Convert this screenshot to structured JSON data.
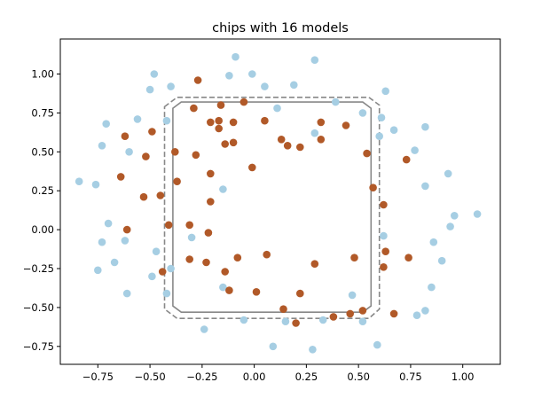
{
  "chart_data": {
    "type": "scatter",
    "title": "chips with 16 models",
    "xlabel": "",
    "ylabel": "",
    "xlim": [
      -0.93,
      1.18
    ],
    "ylim": [
      -0.865,
      1.225
    ],
    "xticks": [
      -0.75,
      -0.5,
      -0.25,
      0.0,
      0.25,
      0.5,
      0.75,
      1.0
    ],
    "xtick_labels": [
      "−0.75",
      "−0.50",
      "−0.25",
      "0.00",
      "0.25",
      "0.50",
      "0.75",
      "1.00"
    ],
    "yticks": [
      -0.75,
      -0.5,
      -0.25,
      0.0,
      0.25,
      0.5,
      0.75,
      1.0
    ],
    "ytick_labels": [
      "−0.75",
      "−0.50",
      "−0.25",
      "0.00",
      "0.25",
      "0.50",
      "0.75",
      "1.00"
    ],
    "grid": false,
    "legend": "none",
    "colors": {
      "class_0": "#a6cee3",
      "class_1": "#b15928",
      "boundary_solid": "#888888",
      "boundary_dashed": "#888888"
    },
    "series": [
      {
        "color_key": "class_0",
        "points": [
          [
            -0.84,
            0.31
          ],
          [
            -0.76,
            0.29
          ],
          [
            -0.73,
            0.54
          ],
          [
            -0.71,
            0.68
          ],
          [
            -0.7,
            0.04
          ],
          [
            -0.73,
            -0.08
          ],
          [
            -0.75,
            -0.26
          ],
          [
            -0.67,
            -0.21
          ],
          [
            -0.62,
            -0.07
          ],
          [
            -0.61,
            -0.41
          ],
          [
            -0.56,
            0.71
          ],
          [
            -0.6,
            0.5
          ],
          [
            -0.5,
            0.9
          ],
          [
            -0.48,
            1.0
          ],
          [
            -0.47,
            -0.14
          ],
          [
            -0.49,
            -0.3
          ],
          [
            -0.42,
            0.7
          ],
          [
            -0.4,
            0.92
          ],
          [
            -0.4,
            -0.25
          ],
          [
            -0.42,
            -0.41
          ],
          [
            -0.3,
            -0.05
          ],
          [
            -0.24,
            -0.64
          ],
          [
            -0.15,
            0.26
          ],
          [
            -0.15,
            -0.37
          ],
          [
            -0.12,
            0.99
          ],
          [
            -0.09,
            1.11
          ],
          [
            -0.05,
            -0.58
          ],
          [
            -0.01,
            1.0
          ],
          [
            0.05,
            0.92
          ],
          [
            0.09,
            -0.75
          ],
          [
            0.11,
            0.78
          ],
          [
            0.15,
            -0.59
          ],
          [
            0.19,
            0.93
          ],
          [
            0.29,
            1.09
          ],
          [
            0.29,
            0.62
          ],
          [
            0.28,
            -0.77
          ],
          [
            0.33,
            -0.58
          ],
          [
            0.39,
            0.82
          ],
          [
            0.52,
            0.75
          ],
          [
            0.47,
            -0.42
          ],
          [
            0.52,
            -0.59
          ],
          [
            0.61,
            0.72
          ],
          [
            0.6,
            0.6
          ],
          [
            0.63,
            0.89
          ],
          [
            0.67,
            0.64
          ],
          [
            0.59,
            -0.74
          ],
          [
            0.62,
            -0.04
          ],
          [
            0.77,
            0.51
          ],
          [
            0.82,
            0.66
          ],
          [
            0.82,
            0.28
          ],
          [
            0.78,
            -0.55
          ],
          [
            0.82,
            -0.52
          ],
          [
            0.85,
            -0.37
          ],
          [
            0.86,
            -0.08
          ],
          [
            0.9,
            -0.2
          ],
          [
            0.93,
            0.36
          ],
          [
            0.94,
            0.02
          ],
          [
            0.96,
            0.09
          ],
          [
            1.07,
            0.1
          ]
        ]
      },
      {
        "color_key": "class_1",
        "points": [
          [
            -0.64,
            0.34
          ],
          [
            -0.62,
            0.6
          ],
          [
            -0.61,
            0.0
          ],
          [
            -0.53,
            0.21
          ],
          [
            -0.52,
            0.47
          ],
          [
            -0.49,
            0.63
          ],
          [
            -0.45,
            0.22
          ],
          [
            -0.44,
            -0.27
          ],
          [
            -0.41,
            0.03
          ],
          [
            -0.38,
            0.5
          ],
          [
            -0.37,
            0.31
          ],
          [
            -0.31,
            -0.19
          ],
          [
            -0.31,
            0.03
          ],
          [
            -0.29,
            0.78
          ],
          [
            -0.28,
            0.48
          ],
          [
            -0.27,
            0.96
          ],
          [
            -0.23,
            -0.21
          ],
          [
            -0.22,
            -0.02
          ],
          [
            -0.21,
            0.69
          ],
          [
            -0.21,
            0.36
          ],
          [
            -0.21,
            0.18
          ],
          [
            -0.17,
            0.7
          ],
          [
            -0.17,
            0.65
          ],
          [
            -0.16,
            0.8
          ],
          [
            -0.14,
            0.55
          ],
          [
            -0.14,
            -0.27
          ],
          [
            -0.12,
            -0.39
          ],
          [
            -0.1,
            0.69
          ],
          [
            -0.1,
            0.56
          ],
          [
            -0.08,
            -0.18
          ],
          [
            -0.05,
            0.82
          ],
          [
            -0.01,
            0.4
          ],
          [
            0.01,
            -0.4
          ],
          [
            0.05,
            0.7
          ],
          [
            0.06,
            -0.16
          ],
          [
            0.13,
            0.58
          ],
          [
            0.14,
            -0.51
          ],
          [
            0.16,
            0.54
          ],
          [
            0.2,
            -0.6
          ],
          [
            0.22,
            0.53
          ],
          [
            0.22,
            -0.41
          ],
          [
            0.29,
            -0.22
          ],
          [
            0.32,
            0.69
          ],
          [
            0.32,
            0.58
          ],
          [
            0.38,
            -0.56
          ],
          [
            0.44,
            0.67
          ],
          [
            0.46,
            -0.54
          ],
          [
            0.48,
            -0.18
          ],
          [
            0.52,
            -0.52
          ],
          [
            0.54,
            0.49
          ],
          [
            0.57,
            0.27
          ],
          [
            0.62,
            0.16
          ],
          [
            0.63,
            -0.14
          ],
          [
            0.62,
            -0.24
          ],
          [
            0.67,
            -0.54
          ],
          [
            0.73,
            0.45
          ],
          [
            0.74,
            -0.18
          ]
        ]
      }
    ],
    "boundaries": [
      {
        "style": "solid",
        "color_key": "boundary_solid",
        "path": [
          [
            -0.39,
            0.78
          ],
          [
            -0.35,
            0.82
          ],
          [
            0.52,
            0.82
          ],
          [
            0.56,
            0.78
          ],
          [
            0.56,
            -0.49
          ],
          [
            0.52,
            -0.53
          ],
          [
            -0.35,
            -0.53
          ],
          [
            -0.39,
            -0.49
          ]
        ]
      },
      {
        "style": "dashed",
        "color_key": "boundary_dashed",
        "path": [
          [
            -0.43,
            0.79
          ],
          [
            -0.37,
            0.85
          ],
          [
            0.55,
            0.85
          ],
          [
            0.6,
            0.8
          ],
          [
            0.6,
            -0.51
          ],
          [
            0.55,
            -0.57
          ],
          [
            -0.37,
            -0.57
          ],
          [
            -0.43,
            -0.51
          ]
        ]
      }
    ]
  }
}
